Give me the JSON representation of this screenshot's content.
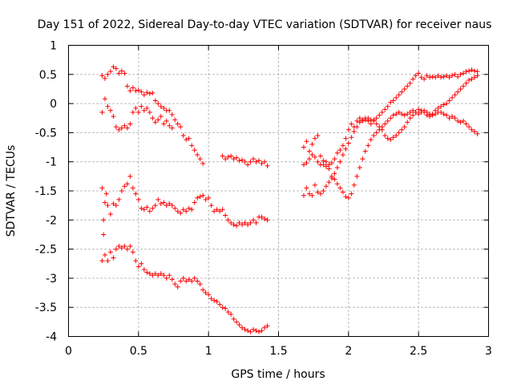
{
  "chart_data": {
    "type": "scatter",
    "title": "Day 151 of 2022, Sidereal Day-to-day VTEC variation (SDTVAR) for receiver naus",
    "xlabel": "GPS time / hours",
    "ylabel": "SDTVAR / TECUs",
    "xlim": [
      0,
      3
    ],
    "ylim": [
      -4,
      1
    ],
    "xticks": [
      0,
      0.5,
      1,
      1.5,
      2,
      2.5,
      3
    ],
    "xtick_labels": [
      "0",
      "0.5",
      "1",
      "1.5",
      "2",
      "2.5",
      "3"
    ],
    "yticks": [
      -4,
      -3.5,
      -3,
      -2.5,
      -2,
      -1.5,
      -1,
      -0.5,
      0,
      0.5,
      1
    ],
    "ytick_labels": [
      "-4",
      "-3.5",
      "-3",
      "-2.5",
      "-2",
      "-1.5",
      "-1",
      "-0.5",
      "0",
      "0.5",
      "1"
    ],
    "grid": true,
    "marker": "+",
    "color": "#ff0000",
    "series": [
      {
        "name": "track-a-upper",
        "x": [
          0.24,
          0.26,
          0.28,
          0.3,
          0.32,
          0.34,
          0.36,
          0.38,
          0.4,
          0.42,
          0.44,
          0.46,
          0.48,
          0.5,
          0.52,
          0.54,
          0.56,
          0.58,
          0.6,
          0.62,
          0.64,
          0.66,
          0.68,
          0.7,
          0.72,
          0.74,
          0.76,
          0.78,
          0.8,
          0.82,
          0.84,
          0.86,
          0.88,
          0.9,
          0.92,
          0.94,
          0.96
        ],
        "y": [
          0.48,
          0.43,
          0.5,
          0.55,
          0.63,
          0.6,
          0.52,
          0.56,
          0.52,
          0.3,
          0.22,
          0.27,
          0.22,
          0.23,
          0.2,
          0.15,
          0.19,
          0.17,
          0.18,
          0.05,
          0.0,
          -0.05,
          -0.08,
          -0.12,
          -0.12,
          -0.19,
          -0.28,
          -0.35,
          -0.4,
          -0.55,
          -0.62,
          -0.6,
          -0.72,
          -0.8,
          -0.88,
          -0.95,
          -1.03
        ]
      },
      {
        "name": "track-a-lower",
        "x": [
          0.24,
          0.26,
          0.28,
          0.3,
          0.32,
          0.34,
          0.36,
          0.38,
          0.4,
          0.42,
          0.44,
          0.46,
          0.48,
          0.5,
          0.52,
          0.54,
          0.56,
          0.58,
          0.6,
          0.62,
          0.64,
          0.66,
          0.68,
          0.7,
          0.72,
          0.74
        ],
        "y": [
          -0.15,
          0.08,
          -0.05,
          -0.12,
          -0.22,
          -0.4,
          -0.45,
          -0.42,
          -0.38,
          -0.42,
          -0.35,
          -0.15,
          -0.08,
          -0.15,
          -0.05,
          -0.12,
          -0.08,
          -0.15,
          -0.25,
          -0.32,
          -0.28,
          -0.22,
          -0.35,
          -0.3,
          -0.38,
          -0.42
        ]
      },
      {
        "name": "track-a-right",
        "x": [
          1.1,
          1.12,
          1.14,
          1.16,
          1.18,
          1.2,
          1.22,
          1.24,
          1.26,
          1.28,
          1.3,
          1.32,
          1.34,
          1.36,
          1.38,
          1.4,
          1.42
        ],
        "y": [
          -0.9,
          -0.95,
          -0.92,
          -0.9,
          -0.95,
          -0.93,
          -0.98,
          -0.97,
          -1.0,
          -1.05,
          -1.0,
          -0.95,
          -1.0,
          -0.98,
          -1.03,
          -1.0,
          -1.07
        ]
      },
      {
        "name": "track-b",
        "x": [
          0.24,
          0.25,
          0.26,
          0.27,
          0.28,
          0.3,
          0.32,
          0.34,
          0.36,
          0.38,
          0.4,
          0.42,
          0.44,
          0.46,
          0.48,
          0.5,
          0.52,
          0.54,
          0.56,
          0.58,
          0.6,
          0.62,
          0.64,
          0.66,
          0.68,
          0.7,
          0.72,
          0.74,
          0.76,
          0.78,
          0.8,
          0.82,
          0.84,
          0.86,
          0.88,
          0.9,
          0.92,
          0.94,
          0.96,
          0.98,
          1.0,
          1.02,
          1.04,
          1.06,
          1.08,
          1.1,
          1.12,
          1.14,
          1.16,
          1.18,
          1.2,
          1.22,
          1.24,
          1.26,
          1.28,
          1.3,
          1.32,
          1.34,
          1.36,
          1.38,
          1.4,
          1.42
        ],
        "y": [
          -1.45,
          -2.0,
          -1.7,
          -1.55,
          -1.75,
          -1.9,
          -1.72,
          -1.75,
          -1.65,
          -1.5,
          -1.42,
          -1.38,
          -1.25,
          -1.45,
          -1.55,
          -1.65,
          -1.8,
          -1.82,
          -1.78,
          -1.85,
          -1.8,
          -1.75,
          -1.65,
          -1.72,
          -1.7,
          -1.75,
          -1.72,
          -1.75,
          -1.8,
          -1.85,
          -1.88,
          -1.82,
          -1.85,
          -1.8,
          -1.82,
          -1.7,
          -1.62,
          -1.6,
          -1.58,
          -1.65,
          -1.62,
          -1.75,
          -1.85,
          -1.82,
          -1.85,
          -1.82,
          -1.92,
          -2.0,
          -2.05,
          -2.08,
          -2.1,
          -2.05,
          -2.08,
          -2.05,
          -2.08,
          -2.05,
          -2.0,
          -2.05,
          -1.95,
          -1.95,
          -1.98,
          -2.0
        ]
      },
      {
        "name": "track-c",
        "x": [
          0.24,
          0.25,
          0.26,
          0.28,
          0.3,
          0.32,
          0.34,
          0.36,
          0.38,
          0.4,
          0.42,
          0.44,
          0.46,
          0.48,
          0.5,
          0.52,
          0.54,
          0.56,
          0.58,
          0.6,
          0.62,
          0.64,
          0.66,
          0.68,
          0.7,
          0.72,
          0.74,
          0.76,
          0.78,
          0.8,
          0.82,
          0.84,
          0.86,
          0.88,
          0.9,
          0.92,
          0.94,
          0.96,
          0.98,
          1.0,
          1.02,
          1.04,
          1.06,
          1.08,
          1.1,
          1.12,
          1.14,
          1.16,
          1.18,
          1.2,
          1.22,
          1.24,
          1.26,
          1.28,
          1.3,
          1.32,
          1.34,
          1.36,
          1.38,
          1.4,
          1.42
        ],
        "y": [
          -2.7,
          -2.25,
          -2.6,
          -2.7,
          -2.55,
          -2.65,
          -2.5,
          -2.45,
          -2.48,
          -2.45,
          -2.5,
          -2.45,
          -2.55,
          -2.7,
          -2.8,
          -2.75,
          -2.85,
          -2.9,
          -2.92,
          -2.95,
          -2.92,
          -2.95,
          -2.92,
          -2.95,
          -3.0,
          -2.95,
          -3.02,
          -3.1,
          -3.15,
          -3.05,
          -3.0,
          -3.05,
          -3.02,
          -3.05,
          -3.0,
          -3.05,
          -3.1,
          -3.2,
          -3.25,
          -3.28,
          -3.35,
          -3.38,
          -3.4,
          -3.45,
          -3.5,
          -3.52,
          -3.58,
          -3.62,
          -3.7,
          -3.75,
          -3.8,
          -3.85,
          -3.88,
          -3.9,
          -3.92,
          -3.88,
          -3.9,
          -3.92,
          -3.9,
          -3.85,
          -3.82
        ]
      },
      {
        "name": "track-d",
        "x": [
          1.68,
          1.7,
          1.72,
          1.74,
          1.76,
          1.78,
          1.8,
          1.82,
          1.84,
          1.86,
          1.88,
          1.9,
          1.92,
          1.94,
          1.96,
          1.98,
          2.0,
          2.02,
          2.04,
          2.06,
          2.08,
          2.1,
          2.12,
          2.14,
          2.16,
          2.18,
          2.2,
          2.22,
          2.24,
          2.26,
          2.28,
          2.3,
          2.32,
          2.34,
          2.36,
          2.38,
          2.4,
          2.42,
          2.44,
          2.46,
          2.48,
          2.5,
          2.52,
          2.54,
          2.56,
          2.58,
          2.6,
          2.62,
          2.64,
          2.66,
          2.68,
          2.7,
          2.72,
          2.74,
          2.76,
          2.78,
          2.8,
          2.82,
          2.84,
          2.86,
          2.88,
          2.9,
          2.92
        ],
        "y": [
          -0.75,
          -0.65,
          -0.82,
          -0.7,
          -0.6,
          -0.55,
          -0.9,
          -1.05,
          -1.0,
          -1.05,
          -1.02,
          -0.95,
          -0.85,
          -0.8,
          -0.72,
          -0.6,
          -0.45,
          -0.35,
          -0.4,
          -0.3,
          -0.25,
          -0.28,
          -0.25,
          -0.3,
          -0.35,
          -0.28,
          -0.25,
          -0.2,
          -0.15,
          -0.1,
          -0.05,
          0.02,
          0.05,
          0.1,
          0.15,
          0.2,
          0.25,
          0.3,
          0.35,
          0.42,
          0.48,
          0.52,
          0.45,
          0.42,
          0.48,
          0.45,
          0.46,
          0.45,
          0.48,
          0.45,
          0.46,
          0.48,
          0.45,
          0.48,
          0.5,
          0.46,
          0.5,
          0.52,
          0.55,
          0.56,
          0.58,
          0.56,
          0.55
        ]
      },
      {
        "name": "track-e",
        "x": [
          1.68,
          1.7,
          1.72,
          1.74,
          1.76,
          1.78,
          1.8,
          1.82,
          1.84,
          1.86,
          1.88,
          1.9,
          1.92,
          1.94,
          1.96,
          1.98,
          2.0,
          2.02,
          2.04,
          2.06,
          2.08,
          2.1,
          2.12,
          2.14,
          2.16,
          2.18,
          2.2,
          2.22,
          2.24,
          2.26,
          2.28,
          2.3,
          2.32,
          2.34,
          2.36,
          2.38,
          2.4,
          2.42,
          2.44,
          2.46,
          2.48,
          2.5,
          2.52,
          2.54,
          2.56,
          2.58,
          2.6,
          2.62,
          2.64,
          2.66,
          2.68,
          2.7,
          2.72,
          2.74,
          2.76,
          2.78,
          2.8,
          2.82,
          2.84,
          2.86,
          2.88,
          2.9,
          2.92
        ],
        "y": [
          -1.05,
          -1.02,
          -0.95,
          -0.88,
          -0.92,
          -1.0,
          -1.05,
          -0.98,
          -1.08,
          -1.12,
          -1.25,
          -1.3,
          -1.38,
          -1.45,
          -1.52,
          -1.6,
          -1.62,
          -1.55,
          -1.4,
          -1.25,
          -1.1,
          -0.95,
          -0.82,
          -0.72,
          -0.62,
          -0.55,
          -0.5,
          -0.45,
          -0.4,
          -0.35,
          -0.3,
          -0.25,
          -0.2,
          -0.18,
          -0.15,
          -0.18,
          -0.2,
          -0.18,
          -0.15,
          -0.12,
          -0.15,
          -0.18,
          -0.15,
          -0.12,
          -0.15,
          -0.18,
          -0.2,
          -0.18,
          -0.15,
          -0.15,
          -0.18,
          -0.2,
          -0.25,
          -0.22,
          -0.25,
          -0.3,
          -0.32,
          -0.3,
          -0.35,
          -0.4,
          -0.45,
          -0.48,
          -0.52
        ]
      },
      {
        "name": "track-f",
        "x": [
          1.68,
          1.7,
          1.72,
          1.74,
          1.76,
          1.78,
          1.8,
          1.82,
          1.84,
          1.86,
          1.88,
          1.9,
          1.92,
          1.94,
          1.96,
          1.98,
          2.0,
          2.02,
          2.04,
          2.06,
          2.08,
          2.1,
          2.12,
          2.14,
          2.16,
          2.18,
          2.2,
          2.22,
          2.24,
          2.26,
          2.28,
          2.3,
          2.32,
          2.34,
          2.36,
          2.38,
          2.4,
          2.42,
          2.44,
          2.46,
          2.48,
          2.5,
          2.52,
          2.54,
          2.56,
          2.58,
          2.6,
          2.62,
          2.64,
          2.66,
          2.68,
          2.7,
          2.72,
          2.74,
          2.76,
          2.78,
          2.8,
          2.82,
          2.84,
          2.86,
          2.88,
          2.9,
          2.92
        ],
        "y": [
          -1.58,
          -1.45,
          -1.55,
          -1.58,
          -1.4,
          -1.52,
          -1.55,
          -1.5,
          -1.42,
          -1.35,
          -1.28,
          -1.2,
          -1.1,
          -1.0,
          -0.88,
          -0.78,
          -0.68,
          -0.58,
          -0.48,
          -0.4,
          -0.32,
          -0.3,
          -0.28,
          -0.25,
          -0.28,
          -0.3,
          -0.35,
          -0.4,
          -0.45,
          -0.55,
          -0.6,
          -0.62,
          -0.58,
          -0.55,
          -0.5,
          -0.45,
          -0.4,
          -0.32,
          -0.25,
          -0.2,
          -0.15,
          -0.1,
          -0.12,
          -0.15,
          -0.2,
          -0.22,
          -0.18,
          -0.12,
          -0.08,
          -0.05,
          -0.02,
          0.0,
          0.05,
          0.1,
          0.15,
          0.2,
          0.25,
          0.3,
          0.35,
          0.4,
          0.42,
          0.45,
          0.48
        ]
      }
    ]
  }
}
